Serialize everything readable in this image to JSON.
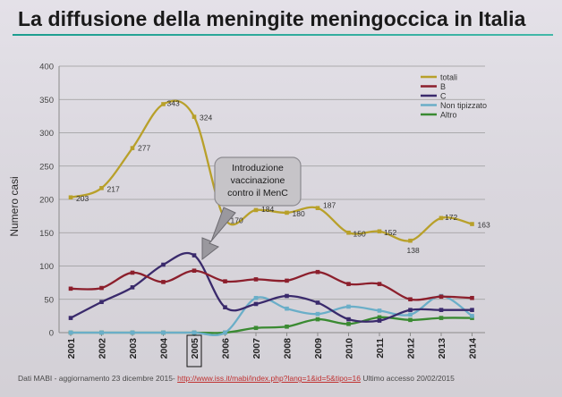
{
  "slide": {
    "title": "La diffusione della meningite meningoccica in Italia"
  },
  "footer": {
    "source": "Dati MABI - aggiornamento 23 dicembre 2015-",
    "link": "http://www.iss.it/mabi/index.php?lang=1&id=5&tipo=16",
    "access": "Ultimo accesso 20/02/2015"
  },
  "colors": {
    "title_underline": "#2aa596",
    "axis": "#8a8a8a",
    "grid": "#9a9a9a",
    "callout_bg": "#c6c4c8",
    "callout_border": "#8c8a90"
  },
  "chart_data": {
    "type": "line",
    "ylabel": "Numero casi",
    "xlabel": "",
    "ylim": [
      0,
      400
    ],
    "yticks": [
      0,
      50,
      100,
      150,
      200,
      250,
      300,
      350,
      400
    ],
    "x": [
      "2001",
      "2002",
      "2003",
      "2004",
      "2005",
      "2006",
      "2007",
      "2008",
      "2009",
      "2010",
      "2011",
      "2012",
      "2013",
      "2014"
    ],
    "highlighted_x": "2005",
    "grid": true,
    "legend_position": "top-right",
    "series": [
      {
        "name": "totali",
        "color": "#b8a02a",
        "values": [
          203,
          217,
          277,
          343,
          324,
          170,
          184,
          180,
          187,
          150,
          152,
          138,
          172,
          163
        ],
        "labels": [
          "203",
          "217",
          "277",
          "343",
          "324",
          "170",
          "184",
          "180",
          "187",
          "150",
          "152",
          "138",
          "172",
          "163"
        ]
      },
      {
        "name": "B",
        "color": "#8c1f2c",
        "values": [
          66,
          67,
          90,
          76,
          93,
          77,
          80,
          78,
          91,
          73,
          73,
          50,
          54,
          52
        ]
      },
      {
        "name": "C",
        "color": "#3a2a6c",
        "values": [
          22,
          46,
          68,
          102,
          116,
          38,
          43,
          55,
          45,
          20,
          18,
          34,
          34,
          34
        ]
      },
      {
        "name": "Non tipizzato",
        "color": "#6aaec8",
        "values": [
          0,
          0,
          0,
          0,
          0,
          0,
          52,
          36,
          28,
          39,
          33,
          27,
          55,
          25
        ]
      },
      {
        "name": "Altro",
        "color": "#3a8a32",
        "values": [
          0,
          0,
          0,
          0,
          0,
          0,
          7,
          9,
          20,
          13,
          23,
          19,
          22,
          22
        ]
      }
    ],
    "annotation": {
      "lines": [
        "Introduzione",
        "vaccinazione",
        "contro il MenC"
      ]
    }
  }
}
